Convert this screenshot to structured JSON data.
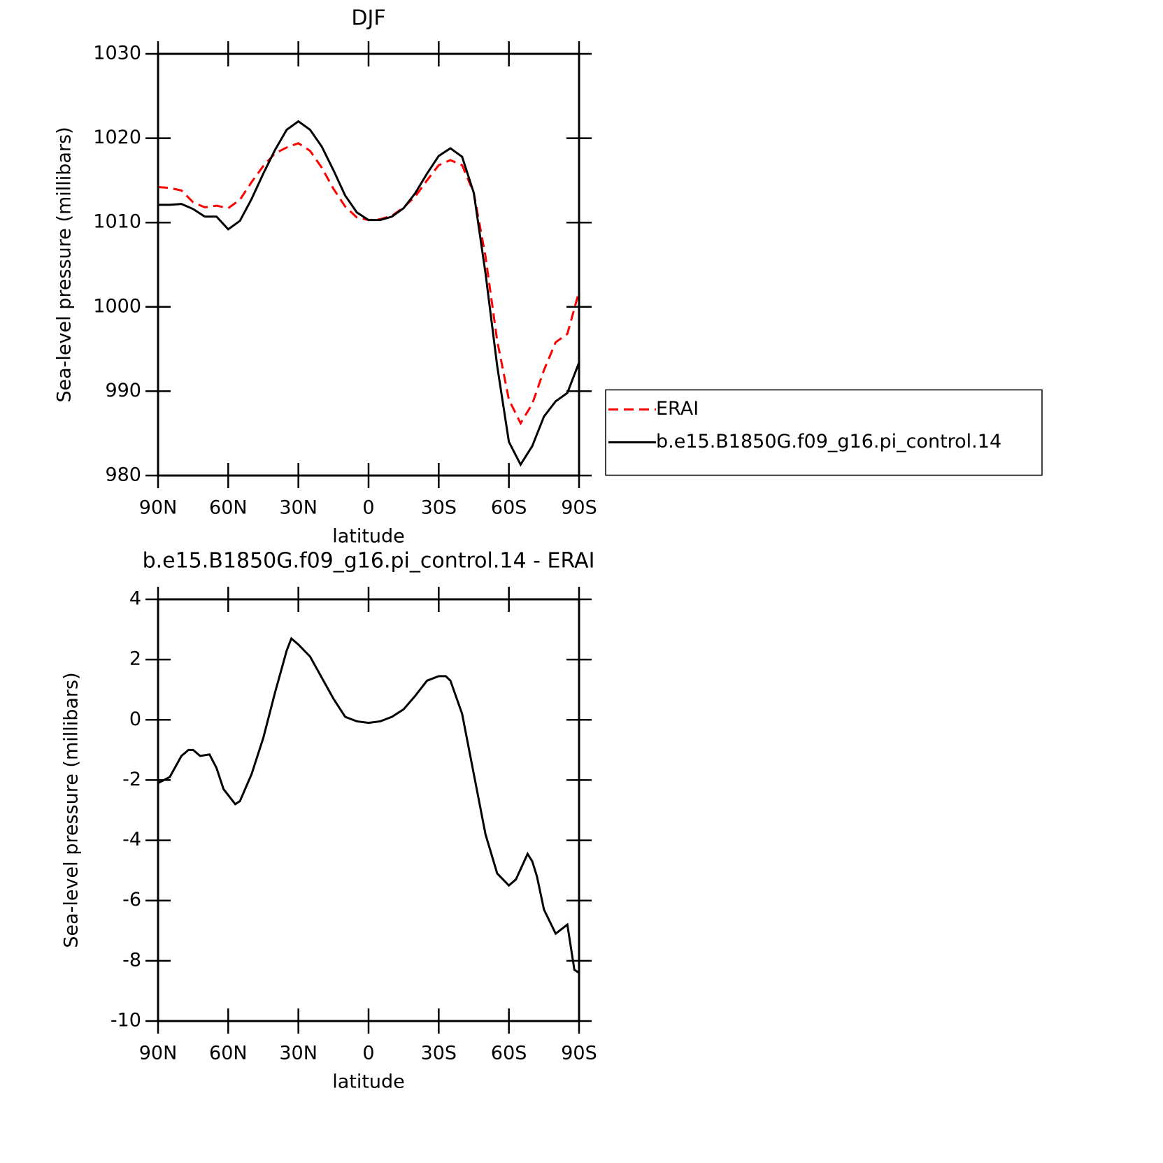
{
  "chart_data": [
    {
      "type": "line",
      "title": "DJF",
      "xlabel": "latitude",
      "ylabel": "Sea-level pressure (millibars)",
      "x": [
        90,
        85,
        80,
        75,
        70,
        65,
        60,
        55,
        50,
        45,
        40,
        35,
        30,
        25,
        20,
        15,
        10,
        5,
        0,
        -5,
        -10,
        -15,
        -20,
        -25,
        -30,
        -35,
        -40,
        -45,
        -50,
        -55,
        -60,
        -65,
        -70,
        -75,
        -80,
        -85,
        -90
      ],
      "series": [
        {
          "name": "ERAI",
          "color": "#ff0000",
          "dash": true,
          "values": [
            1014.2,
            1014.1,
            1013.8,
            1012.4,
            1011.8,
            1012.0,
            1011.7,
            1012.7,
            1014.8,
            1016.7,
            1018.2,
            1018.9,
            1019.4,
            1018.5,
            1016.5,
            1014.0,
            1011.9,
            1010.6,
            1010.3,
            1010.4,
            1010.8,
            1011.8,
            1013.1,
            1015.0,
            1016.8,
            1017.4,
            1016.8,
            1013.5,
            1006.0,
            996.0,
            989.0,
            986.2,
            988.5,
            992.5,
            995.8,
            996.8,
            1001.8
          ]
        },
        {
          "name": "b.e15.B1850G.f09_g16.pi_control.14",
          "color": "#000000",
          "dash": false,
          "values": [
            1012.1,
            1012.1,
            1012.2,
            1011.6,
            1010.7,
            1010.7,
            1009.2,
            1010.2,
            1012.8,
            1015.8,
            1018.6,
            1021.0,
            1022.0,
            1021.0,
            1019.0,
            1016.2,
            1013.2,
            1011.2,
            1010.3,
            1010.3,
            1010.7,
            1011.7,
            1013.5,
            1015.8,
            1017.9,
            1018.8,
            1017.8,
            1013.5,
            1004.0,
            993.0,
            984.0,
            981.3,
            983.5,
            987.0,
            988.8,
            989.8,
            993.4
          ]
        }
      ],
      "xlim": [
        90,
        -90
      ],
      "xticks": [
        {
          "value": 90,
          "label": "90N"
        },
        {
          "value": 60,
          "label": "60N"
        },
        {
          "value": 30,
          "label": "30N"
        },
        0,
        {
          "value": -30,
          "label": "30S"
        },
        {
          "value": -60,
          "label": "60S"
        },
        {
          "value": -90,
          "label": "90S"
        }
      ],
      "ylim": [
        980,
        1030
      ],
      "yticks": [
        980,
        990,
        1000,
        1010,
        1020,
        1030
      ],
      "legend": "right"
    },
    {
      "type": "line",
      "title": "b.e15.B1850G.f09_g16.pi_control.14 - ERAI",
      "xlabel": "latitude",
      "ylabel": "Sea-level pressure (millibars)",
      "x": [
        90,
        85,
        80,
        77,
        75,
        72,
        68,
        65,
        62,
        60,
        57,
        55,
        50,
        45,
        40,
        35,
        33,
        30,
        25,
        20,
        15,
        10,
        5,
        0,
        -5,
        -10,
        -15,
        -20,
        -25,
        -30,
        -33,
        -35,
        -40,
        -45,
        -50,
        -55,
        -60,
        -63,
        -68,
        -70,
        -72,
        -75,
        -80,
        -85,
        -88,
        -90
      ],
      "series": [
        {
          "color": "#000000",
          "dash": false,
          "values": [
            -2.1,
            -1.9,
            -1.2,
            -1.0,
            -1.0,
            -1.2,
            -1.15,
            -1.6,
            -2.3,
            -2.5,
            -2.8,
            -2.7,
            -1.8,
            -0.6,
            0.9,
            2.3,
            2.7,
            2.5,
            2.1,
            1.4,
            0.7,
            0.1,
            -0.05,
            -0.1,
            -0.05,
            0.1,
            0.35,
            0.8,
            1.3,
            1.45,
            1.45,
            1.3,
            0.2,
            -1.8,
            -3.8,
            -5.1,
            -5.5,
            -5.3,
            -4.45,
            -4.7,
            -5.2,
            -6.3,
            -7.1,
            -6.8,
            -8.3,
            -8.4
          ]
        }
      ],
      "xlim": [
        90,
        -90
      ],
      "xticks": [
        {
          "value": 90,
          "label": "90N"
        },
        {
          "value": 60,
          "label": "60N"
        },
        {
          "value": 30,
          "label": "30N"
        },
        0,
        {
          "value": -30,
          "label": "30S"
        },
        {
          "value": -60,
          "label": "60S"
        },
        {
          "value": -90,
          "label": "90S"
        }
      ],
      "ylim": [
        -10,
        4
      ],
      "yticks": [
        -10,
        -8,
        -6,
        -4,
        -2,
        0,
        2,
        4
      ]
    }
  ]
}
